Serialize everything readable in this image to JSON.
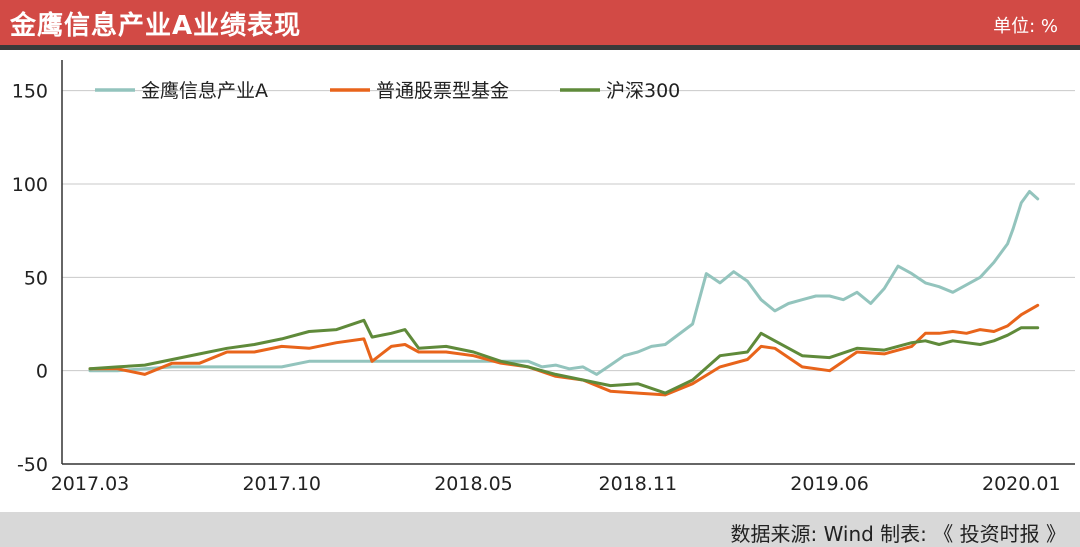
{
  "header": {
    "title": "金鹰信息产业A业绩表现",
    "unit": "单位: %"
  },
  "footer": {
    "source": "数据来源: Wind  制表: 《 投资时报 》"
  },
  "colors": {
    "header_bg": "#d24a45",
    "fund": "#93c4bd",
    "avg": "#e8641b",
    "index": "#5f8a3a"
  },
  "chart_data": {
    "type": "line",
    "title": "金鹰信息产业A业绩表现",
    "ylabel": "",
    "xlabel": "",
    "ylim": [
      -50,
      160
    ],
    "yticks": [
      150,
      100,
      50,
      0,
      -50
    ],
    "xlim": [
      0,
      34.5
    ],
    "x_ticks": [
      {
        "label": "2017.03",
        "x": 0
      },
      {
        "label": "2017.10",
        "x": 7
      },
      {
        "label": "2018.05",
        "x": 14
      },
      {
        "label": "2018.11",
        "x": 20
      },
      {
        "label": "2019.06",
        "x": 27
      },
      {
        "label": "2020.01",
        "x": 34
      }
    ],
    "legend_position": "top-left",
    "grid": "horizontal",
    "series": [
      {
        "name": "金鹰信息产业A",
        "color": "#93c4bd",
        "points": [
          [
            0,
            0
          ],
          [
            1,
            0
          ],
          [
            2,
            1
          ],
          [
            3,
            2
          ],
          [
            4,
            2
          ],
          [
            5,
            2
          ],
          [
            6,
            2
          ],
          [
            7,
            2
          ],
          [
            8,
            5
          ],
          [
            9,
            5
          ],
          [
            10,
            5
          ],
          [
            11,
            5
          ],
          [
            12,
            5
          ],
          [
            13,
            5
          ],
          [
            14,
            5
          ],
          [
            15,
            5
          ],
          [
            16,
            5
          ],
          [
            16.5,
            2
          ],
          [
            17,
            3
          ],
          [
            17.5,
            1
          ],
          [
            18,
            2
          ],
          [
            18.5,
            -2
          ],
          [
            19,
            3
          ],
          [
            19.5,
            8
          ],
          [
            20,
            10
          ],
          [
            20.5,
            13
          ],
          [
            21,
            14
          ],
          [
            22,
            25
          ],
          [
            22.5,
            52
          ],
          [
            23,
            47
          ],
          [
            23.5,
            53
          ],
          [
            24,
            48
          ],
          [
            24.5,
            38
          ],
          [
            25,
            32
          ],
          [
            25.5,
            36
          ],
          [
            26,
            38
          ],
          [
            26.5,
            40
          ],
          [
            27,
            40
          ],
          [
            27.5,
            38
          ],
          [
            28,
            42
          ],
          [
            28.5,
            36
          ],
          [
            29,
            44
          ],
          [
            29.5,
            56
          ],
          [
            30,
            52
          ],
          [
            30.5,
            47
          ],
          [
            31,
            45
          ],
          [
            31.5,
            42
          ],
          [
            32,
            46
          ],
          [
            32.5,
            50
          ],
          [
            33,
            58
          ],
          [
            33.5,
            68
          ],
          [
            33.7,
            76
          ],
          [
            34,
            90
          ],
          [
            34.3,
            96
          ],
          [
            34.6,
            92
          ]
        ]
      },
      {
        "name": "普通股票型基金",
        "color": "#e8641b",
        "points": [
          [
            0,
            1
          ],
          [
            1,
            1
          ],
          [
            2,
            -2
          ],
          [
            3,
            4
          ],
          [
            4,
            4
          ],
          [
            5,
            10
          ],
          [
            6,
            10
          ],
          [
            7,
            13
          ],
          [
            8,
            12
          ],
          [
            9,
            15
          ],
          [
            10,
            17
          ],
          [
            10.3,
            5
          ],
          [
            11,
            13
          ],
          [
            11.5,
            14
          ],
          [
            12,
            10
          ],
          [
            13,
            10
          ],
          [
            14,
            8
          ],
          [
            15,
            4
          ],
          [
            16,
            2
          ],
          [
            17,
            -3
          ],
          [
            18,
            -5
          ],
          [
            19,
            -11
          ],
          [
            20,
            -12
          ],
          [
            21,
            -13
          ],
          [
            22,
            -7
          ],
          [
            23,
            2
          ],
          [
            24,
            6
          ],
          [
            24.5,
            13
          ],
          [
            25,
            12
          ],
          [
            26,
            2
          ],
          [
            27,
            0
          ],
          [
            28,
            10
          ],
          [
            29,
            9
          ],
          [
            30,
            13
          ],
          [
            30.5,
            20
          ],
          [
            31,
            20
          ],
          [
            31.5,
            21
          ],
          [
            32,
            20
          ],
          [
            32.5,
            22
          ],
          [
            33,
            21
          ],
          [
            33.5,
            24
          ],
          [
            34,
            30
          ],
          [
            34.6,
            35
          ]
        ]
      },
      {
        "name": "沪深300",
        "color": "#5f8a3a",
        "points": [
          [
            0,
            1
          ],
          [
            1,
            2
          ],
          [
            2,
            3
          ],
          [
            3,
            6
          ],
          [
            4,
            9
          ],
          [
            5,
            12
          ],
          [
            6,
            14
          ],
          [
            7,
            17
          ],
          [
            8,
            21
          ],
          [
            9,
            22
          ],
          [
            10,
            27
          ],
          [
            10.3,
            18
          ],
          [
            11,
            20
          ],
          [
            11.5,
            22
          ],
          [
            12,
            12
          ],
          [
            13,
            13
          ],
          [
            14,
            10
          ],
          [
            15,
            5
          ],
          [
            16,
            2
          ],
          [
            17,
            -2
          ],
          [
            18,
            -5
          ],
          [
            19,
            -8
          ],
          [
            20,
            -7
          ],
          [
            21,
            -12
          ],
          [
            22,
            -5
          ],
          [
            23,
            8
          ],
          [
            24,
            10
          ],
          [
            24.5,
            20
          ],
          [
            25,
            16
          ],
          [
            26,
            8
          ],
          [
            27,
            7
          ],
          [
            28,
            12
          ],
          [
            29,
            11
          ],
          [
            30,
            15
          ],
          [
            30.5,
            16
          ],
          [
            31,
            14
          ],
          [
            31.5,
            16
          ],
          [
            32,
            15
          ],
          [
            32.5,
            14
          ],
          [
            33,
            16
          ],
          [
            33.5,
            19
          ],
          [
            34,
            23
          ],
          [
            34.6,
            23
          ]
        ]
      }
    ]
  }
}
